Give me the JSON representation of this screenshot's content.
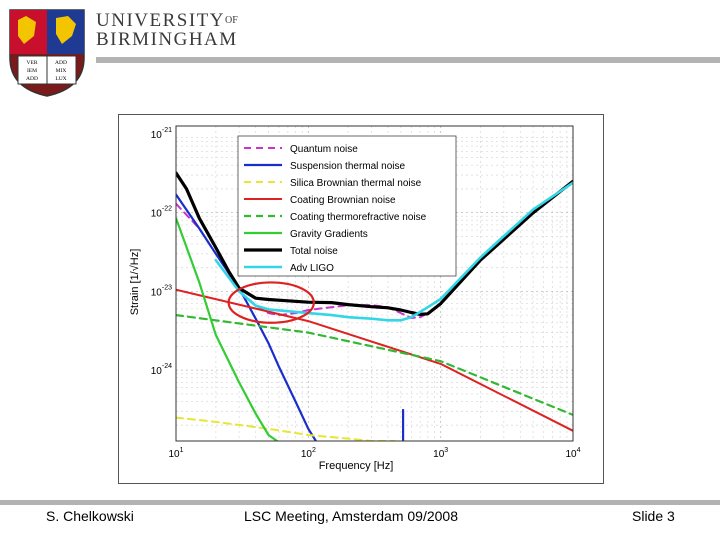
{
  "header": {
    "university_line1": "UNIVERSITY",
    "university_of": "OF",
    "university_line2": "BIRMINGHAM",
    "crest_book_text": [
      "VER",
      "ADD",
      "IEM",
      "MIX",
      "ADD",
      "LUX"
    ]
  },
  "footer": {
    "author": "S. Chelkowski",
    "meeting": "LSC Meeting, Amsterdam 09/2008",
    "slide": "Slide 3"
  },
  "colors": {
    "quantum": "#cc33cc",
    "suspension": "#1a2ecc",
    "silica": "#e6e633",
    "coating_brownian": "#dd2222",
    "coating_thermo": "#33b833",
    "gravity": "#33cc33",
    "total": "#000000",
    "adv_ligo": "#33d6e6",
    "highlight": "#dd2222"
  },
  "chart_data": {
    "type": "line",
    "scale": "log-log",
    "xlabel": "Frequency [Hz]",
    "ylabel": "Strain [1/√Hz]",
    "xlim": [
      10,
      10000
    ],
    "ylim": [
      1.26e-25,
      1.26e-21
    ],
    "xticks": [
      {
        "value": 10,
        "base": "10",
        "exp": "1"
      },
      {
        "value": 100,
        "base": "10",
        "exp": "2"
      },
      {
        "value": 1000,
        "base": "10",
        "exp": "3"
      },
      {
        "value": 10000,
        "base": "10",
        "exp": "4"
      }
    ],
    "yticks": [
      {
        "value": 1e-21,
        "base": "10",
        "exp": "-21"
      },
      {
        "value": 1e-22,
        "base": "10",
        "exp": "-22"
      },
      {
        "value": 1e-23,
        "base": "10",
        "exp": "-23"
      },
      {
        "value": 1e-24,
        "base": "10",
        "exp": "-24"
      }
    ],
    "grid": true,
    "legend_position": "top-center",
    "annotation": {
      "type": "ellipse",
      "center": [
        50,
        7.5e-24
      ],
      "x_range": [
        25,
        110
      ],
      "y_range": [
        4e-24,
        1.3e-23
      ],
      "color": "#dd2222"
    },
    "series": [
      {
        "name": "Quantum noise",
        "color_key": "quantum",
        "dash": true,
        "width": 2,
        "x": [
          10,
          15,
          20,
          25,
          30,
          40,
          50,
          60,
          80,
          100,
          150,
          200,
          300,
          400,
          500,
          600,
          700,
          800
        ],
        "y": [
          1.3e-22,
          6.3e-23,
          3e-23,
          1.7e-23,
          1e-23,
          6.7e-24,
          5.3e-24,
          5e-24,
          5.3e-24,
          5.8e-24,
          6.3e-24,
          6.7e-24,
          6.7e-24,
          6.3e-24,
          5.3e-24,
          4.6e-24,
          4.7e-24,
          5.3e-24
        ]
      },
      {
        "name": "Suspension thermal noise",
        "color_key": "suspension",
        "dash": false,
        "width": 2.2,
        "x": [
          10,
          15,
          20,
          30,
          40,
          50,
          60,
          80,
          100,
          114
        ],
        "y": [
          1.7e-22,
          6.3e-23,
          3e-23,
          1.1e-23,
          4.5e-24,
          2.2e-24,
          1.1e-24,
          4e-25,
          1.8e-25,
          1.26e-25
        ],
        "spike": {
          "x": 520,
          "y_from": 1.26e-25,
          "y_to": 3.2e-25
        }
      },
      {
        "name": "Silica Brownian thermal noise",
        "color_key": "silica",
        "dash": true,
        "width": 2,
        "x": [
          10,
          20,
          50,
          100,
          200,
          300,
          450
        ],
        "y": [
          2.5e-25,
          2.2e-25,
          1.8e-25,
          1.5e-25,
          1.35e-25,
          1.26e-25,
          1.26e-25
        ]
      },
      {
        "name": "Coating Brownian noise",
        "color_key": "coating_brownian",
        "dash": false,
        "width": 2,
        "x": [
          10,
          100,
          1000,
          10000
        ],
        "y": [
          1.05e-23,
          4.2e-24,
          1.2e-24,
          1.7e-25
        ]
      },
      {
        "name": "Coating thermorefractive noise",
        "color_key": "coating_thermo",
        "dash": true,
        "width": 2.2,
        "x": [
          10,
          100,
          1000,
          10000
        ],
        "y": [
          5e-24,
          3e-24,
          1.3e-24,
          2.7e-25
        ]
      },
      {
        "name": "Gravity Gradients",
        "color_key": "gravity",
        "dash": false,
        "width": 2.2,
        "x": [
          10,
          15,
          20,
          30,
          40,
          50,
          58
        ],
        "y": [
          8.5e-23,
          1.3e-23,
          2.8e-24,
          7e-25,
          2.8e-25,
          1.5e-25,
          1.26e-25
        ]
      },
      {
        "name": "Total noise",
        "color_key": "total",
        "dash": false,
        "width": 3.2,
        "x": [
          10,
          12,
          15,
          20,
          25,
          30,
          40,
          50,
          70,
          100,
          150,
          200,
          300,
          400,
          500,
          600,
          700,
          800,
          1000,
          2000,
          5000,
          10000
        ],
        "y": [
          3.2e-22,
          2e-22,
          8.5e-23,
          3.6e-23,
          1.8e-23,
          1.1e-23,
          8.2e-24,
          7.9e-24,
          7.6e-24,
          7.3e-24,
          7.2e-24,
          6.8e-24,
          6.4e-24,
          6.2e-24,
          5.8e-24,
          5.4e-24,
          5.1e-24,
          5.2e-24,
          7e-24,
          2.5e-23,
          1e-22,
          2.5e-22
        ]
      },
      {
        "name": "Adv LIGO",
        "color_key": "adv_ligo",
        "dash": false,
        "width": 2.6,
        "x": [
          20,
          30,
          40,
          50,
          70,
          100,
          150,
          200,
          300,
          400,
          500,
          600,
          700,
          800,
          1000,
          2000,
          5000,
          10000
        ],
        "y": [
          2.5e-23,
          1e-23,
          6.6e-24,
          5.9e-24,
          5.6e-24,
          5.3e-24,
          5e-24,
          4.7e-24,
          4.5e-24,
          4.3e-24,
          4.3e-24,
          4.7e-24,
          5.5e-24,
          6.3e-24,
          8e-24,
          2.7e-23,
          1.1e-22,
          2.4e-22
        ]
      }
    ]
  }
}
